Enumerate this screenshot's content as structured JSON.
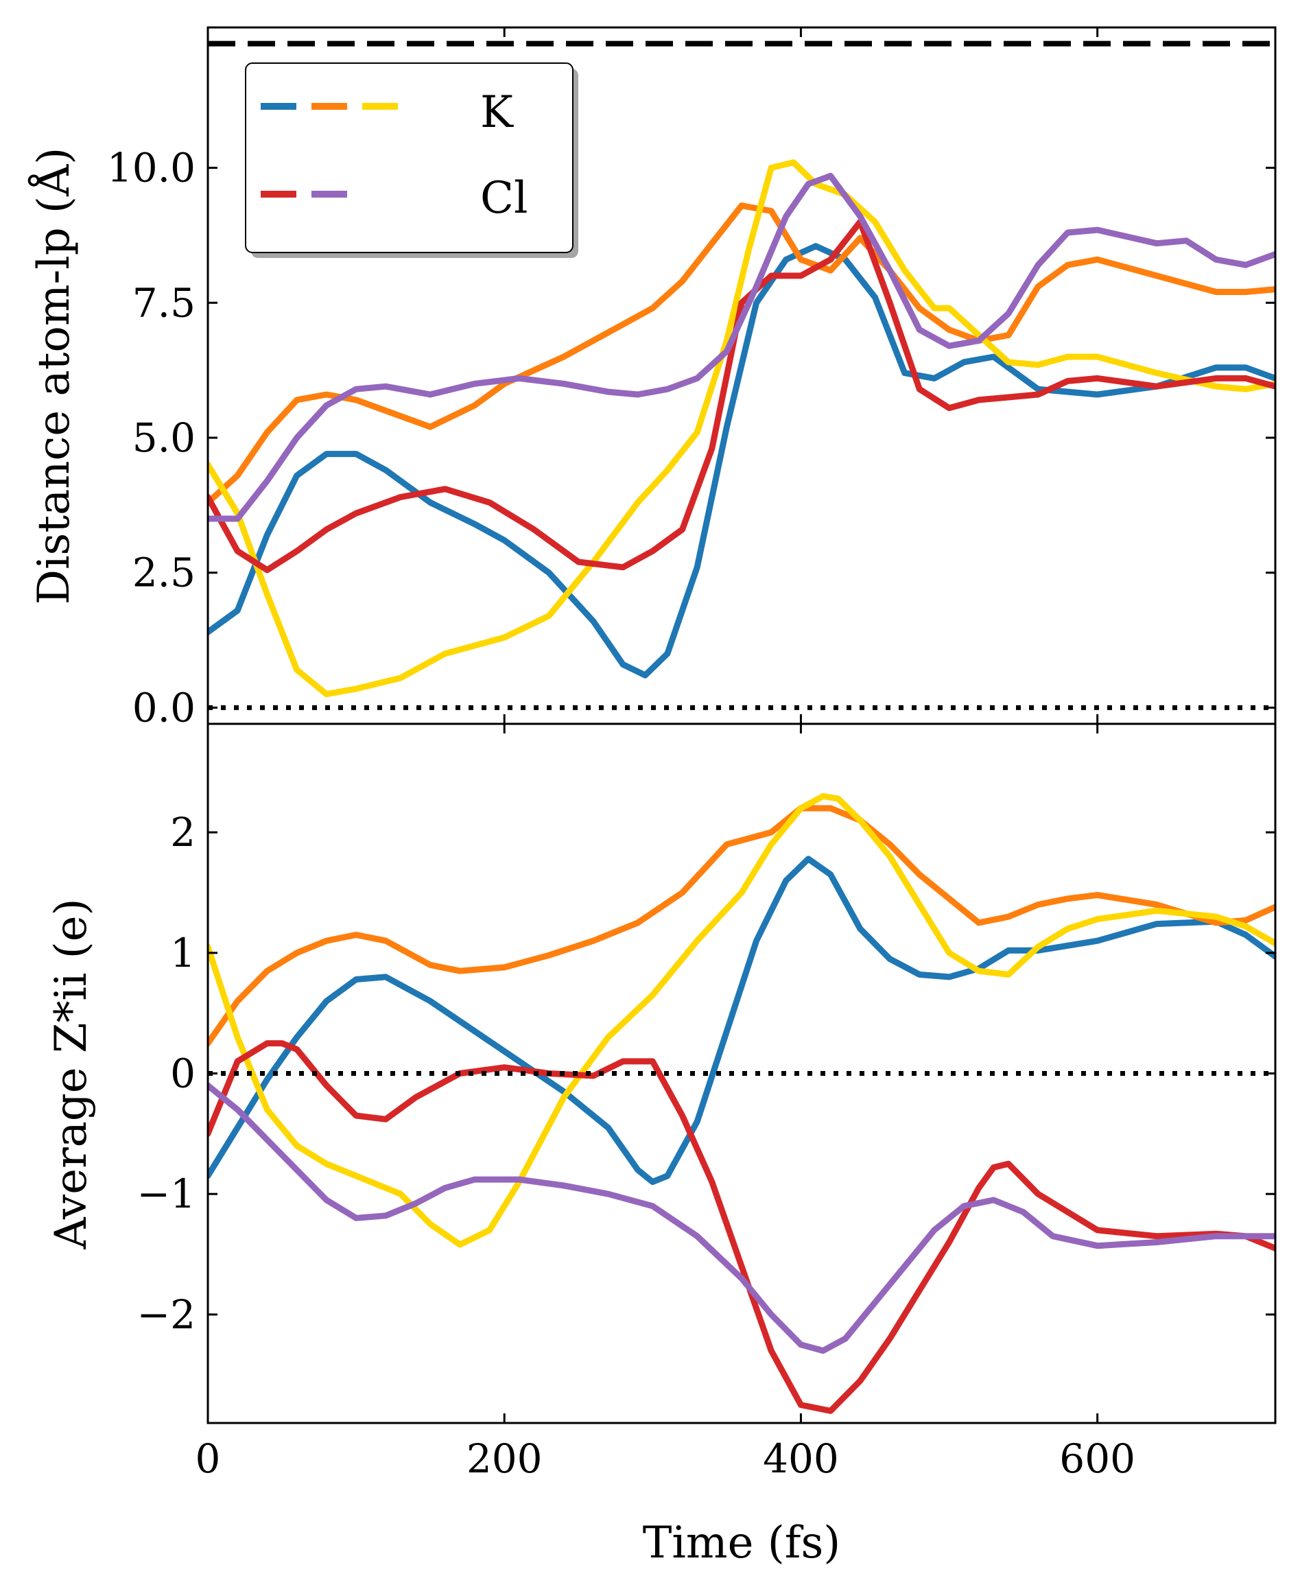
{
  "colors": {
    "blue": "#1f77b4",
    "orange": "#ff7f0e",
    "yellow": "#ffd700",
    "red": "#d62728",
    "purple": "#9467bd",
    "black": "#000000"
  },
  "chart_data": [
    {
      "type": "line",
      "panel": "top",
      "ylabel": "Distance atom-lp (Å)",
      "xlim": [
        0,
        720
      ],
      "ylim": [
        -0.3,
        12.6
      ],
      "yticks": [
        0.0,
        2.5,
        5.0,
        7.5,
        10.0
      ],
      "ytick_labels": [
        "0.0",
        "2.5",
        "5.0",
        "7.5",
        "10.0"
      ],
      "reference_lines": [
        {
          "name": "dashed-reference",
          "y": 12.3,
          "style": "dashed"
        },
        {
          "name": "dotted-zero",
          "y": 0.0,
          "style": "dotted"
        }
      ],
      "legend": {
        "position": "upper-left",
        "entries": [
          {
            "label": "K",
            "colors": [
              "#1f77b4",
              "#ff7f0e",
              "#ffd700"
            ]
          },
          {
            "label": "Cl",
            "colors": [
              "#d62728",
              "#9467bd"
            ]
          }
        ]
      },
      "series": [
        {
          "name": "K-1",
          "color": "#1f77b4",
          "x": [
            0,
            20,
            40,
            60,
            80,
            100,
            120,
            150,
            180,
            200,
            230,
            260,
            280,
            295,
            310,
            330,
            350,
            370,
            390,
            410,
            430,
            450,
            470,
            490,
            510,
            530,
            560,
            600,
            640,
            680,
            700,
            720
          ],
          "y": [
            1.4,
            1.8,
            3.2,
            4.3,
            4.7,
            4.7,
            4.4,
            3.8,
            3.4,
            3.1,
            2.5,
            1.6,
            0.8,
            0.6,
            1.0,
            2.6,
            5.2,
            7.5,
            8.3,
            8.55,
            8.3,
            7.6,
            6.2,
            6.1,
            6.4,
            6.5,
            5.9,
            5.8,
            5.95,
            6.3,
            6.3,
            6.1
          ]
        },
        {
          "name": "K-2",
          "color": "#ff7f0e",
          "x": [
            0,
            20,
            40,
            60,
            80,
            100,
            120,
            150,
            180,
            200,
            240,
            280,
            300,
            320,
            340,
            360,
            380,
            400,
            420,
            440,
            460,
            480,
            500,
            520,
            540,
            560,
            580,
            600,
            640,
            680,
            700,
            720
          ],
          "y": [
            3.8,
            4.3,
            5.1,
            5.7,
            5.8,
            5.7,
            5.5,
            5.2,
            5.6,
            6.0,
            6.5,
            7.1,
            7.4,
            7.9,
            8.6,
            9.3,
            9.2,
            8.3,
            8.1,
            8.7,
            8.1,
            7.4,
            7.0,
            6.8,
            6.9,
            7.8,
            8.2,
            8.3,
            8.0,
            7.7,
            7.7,
            7.75
          ]
        },
        {
          "name": "K-3",
          "color": "#ffd700",
          "x": [
            0,
            20,
            40,
            60,
            80,
            100,
            130,
            160,
            200,
            230,
            260,
            290,
            310,
            330,
            350,
            365,
            380,
            395,
            410,
            430,
            450,
            470,
            490,
            500,
            520,
            540,
            560,
            580,
            600,
            640,
            680,
            700,
            720
          ],
          "y": [
            4.5,
            3.6,
            2.1,
            0.7,
            0.25,
            0.35,
            0.55,
            1.0,
            1.3,
            1.7,
            2.7,
            3.8,
            4.4,
            5.1,
            6.8,
            8.5,
            10.0,
            10.1,
            9.7,
            9.5,
            9.0,
            8.1,
            7.4,
            7.4,
            6.9,
            6.4,
            6.35,
            6.5,
            6.5,
            6.2,
            5.95,
            5.9,
            6.0
          ]
        },
        {
          "name": "Cl-1",
          "color": "#d62728",
          "x": [
            0,
            20,
            40,
            60,
            80,
            100,
            130,
            160,
            190,
            220,
            250,
            280,
            300,
            320,
            340,
            360,
            380,
            400,
            420,
            440,
            460,
            480,
            500,
            520,
            540,
            560,
            580,
            600,
            640,
            680,
            700,
            720
          ],
          "y": [
            3.9,
            2.9,
            2.55,
            2.9,
            3.3,
            3.6,
            3.9,
            4.05,
            3.8,
            3.3,
            2.7,
            2.6,
            2.9,
            3.3,
            4.8,
            7.5,
            8.0,
            8.0,
            8.3,
            9.0,
            7.5,
            5.9,
            5.55,
            5.7,
            5.75,
            5.8,
            6.05,
            6.1,
            5.95,
            6.1,
            6.1,
            5.95
          ]
        },
        {
          "name": "Cl-2",
          "color": "#9467bd",
          "x": [
            0,
            20,
            40,
            60,
            80,
            100,
            120,
            150,
            180,
            210,
            240,
            270,
            290,
            310,
            330,
            350,
            370,
            390,
            405,
            420,
            440,
            460,
            480,
            500,
            520,
            540,
            560,
            580,
            600,
            640,
            660,
            680,
            700,
            720
          ],
          "y": [
            3.5,
            3.5,
            4.2,
            5.0,
            5.6,
            5.9,
            5.95,
            5.8,
            6.0,
            6.1,
            6.0,
            5.85,
            5.8,
            5.9,
            6.1,
            6.6,
            7.8,
            9.1,
            9.7,
            9.85,
            9.1,
            8.1,
            7.0,
            6.7,
            6.8,
            7.3,
            8.2,
            8.8,
            8.85,
            8.6,
            8.65,
            8.3,
            8.2,
            8.4
          ]
        }
      ]
    },
    {
      "type": "line",
      "panel": "bottom",
      "ylabel": "Average Z*ii (e)",
      "xlabel": "Time (fs)",
      "xlim": [
        0,
        720
      ],
      "xticks": [
        0,
        200,
        400,
        600
      ],
      "xtick_labels": [
        "0",
        "200",
        "400",
        "600"
      ],
      "ylim": [
        -2.9,
        2.9
      ],
      "yticks": [
        -2,
        -1,
        0,
        1,
        2
      ],
      "ytick_labels": [
        "−2",
        "−1",
        "0",
        "1",
        "2"
      ],
      "reference_lines": [
        {
          "name": "dotted-zero",
          "y": 0.0,
          "style": "dotted"
        }
      ],
      "series": [
        {
          "name": "K-1",
          "color": "#1f77b4",
          "x": [
            0,
            20,
            40,
            60,
            80,
            100,
            120,
            150,
            180,
            210,
            240,
            270,
            290,
            300,
            310,
            330,
            350,
            370,
            390,
            405,
            420,
            440,
            460,
            480,
            500,
            520,
            540,
            560,
            600,
            640,
            680,
            700,
            720
          ],
          "y": [
            -0.85,
            -0.45,
            -0.05,
            0.3,
            0.6,
            0.78,
            0.8,
            0.6,
            0.35,
            0.1,
            -0.15,
            -0.45,
            -0.8,
            -0.9,
            -0.85,
            -0.4,
            0.35,
            1.1,
            1.6,
            1.78,
            1.65,
            1.2,
            0.95,
            0.82,
            0.8,
            0.87,
            1.02,
            1.02,
            1.1,
            1.24,
            1.26,
            1.15,
            0.97
          ]
        },
        {
          "name": "K-2",
          "color": "#ff7f0e",
          "x": [
            0,
            20,
            40,
            60,
            80,
            100,
            120,
            150,
            170,
            200,
            230,
            260,
            290,
            320,
            350,
            380,
            400,
            420,
            440,
            460,
            480,
            500,
            520,
            540,
            560,
            580,
            600,
            640,
            680,
            700,
            720
          ],
          "y": [
            0.25,
            0.6,
            0.85,
            1.0,
            1.1,
            1.15,
            1.1,
            0.9,
            0.85,
            0.88,
            0.98,
            1.1,
            1.25,
            1.5,
            1.9,
            2.0,
            2.2,
            2.2,
            2.1,
            1.9,
            1.65,
            1.45,
            1.25,
            1.3,
            1.4,
            1.45,
            1.48,
            1.4,
            1.25,
            1.27,
            1.38
          ]
        },
        {
          "name": "K-3",
          "color": "#ffd700",
          "x": [
            0,
            20,
            40,
            60,
            80,
            100,
            130,
            150,
            170,
            190,
            210,
            240,
            270,
            300,
            330,
            360,
            380,
            400,
            415,
            425,
            440,
            460,
            480,
            500,
            520,
            540,
            560,
            580,
            600,
            640,
            680,
            700,
            720
          ],
          "y": [
            1.05,
            0.3,
            -0.3,
            -0.6,
            -0.75,
            -0.85,
            -1.0,
            -1.25,
            -1.42,
            -1.3,
            -0.9,
            -0.2,
            0.3,
            0.65,
            1.1,
            1.5,
            1.9,
            2.2,
            2.3,
            2.28,
            2.1,
            1.8,
            1.4,
            1.0,
            0.85,
            0.82,
            1.05,
            1.2,
            1.28,
            1.35,
            1.3,
            1.22,
            1.08
          ]
        },
        {
          "name": "Cl-1",
          "color": "#d62728",
          "x": [
            0,
            20,
            40,
            50,
            60,
            80,
            100,
            120,
            140,
            170,
            200,
            230,
            260,
            280,
            300,
            320,
            340,
            360,
            380,
            400,
            420,
            440,
            460,
            480,
            500,
            520,
            530,
            540,
            560,
            600,
            640,
            680,
            700,
            720
          ],
          "y": [
            -0.5,
            0.1,
            0.25,
            0.25,
            0.2,
            -0.1,
            -0.35,
            -0.38,
            -0.2,
            0.0,
            0.05,
            0.0,
            -0.02,
            0.1,
            0.1,
            -0.35,
            -0.9,
            -1.6,
            -2.3,
            -2.75,
            -2.8,
            -2.55,
            -2.2,
            -1.8,
            -1.4,
            -0.95,
            -0.78,
            -0.75,
            -1.0,
            -1.3,
            -1.35,
            -1.33,
            -1.35,
            -1.45
          ]
        },
        {
          "name": "Cl-2",
          "color": "#9467bd",
          "x": [
            0,
            20,
            40,
            60,
            80,
            100,
            120,
            140,
            160,
            180,
            210,
            240,
            270,
            300,
            330,
            360,
            380,
            400,
            415,
            430,
            450,
            470,
            490,
            510,
            530,
            550,
            570,
            600,
            640,
            680,
            700,
            720
          ],
          "y": [
            -0.1,
            -0.3,
            -0.55,
            -0.8,
            -1.05,
            -1.2,
            -1.18,
            -1.08,
            -0.95,
            -0.88,
            -0.88,
            -0.93,
            -1.0,
            -1.1,
            -1.35,
            -1.7,
            -2.0,
            -2.25,
            -2.3,
            -2.2,
            -1.9,
            -1.6,
            -1.3,
            -1.1,
            -1.05,
            -1.15,
            -1.35,
            -1.43,
            -1.4,
            -1.35,
            -1.35,
            -1.35
          ]
        }
      ]
    }
  ]
}
